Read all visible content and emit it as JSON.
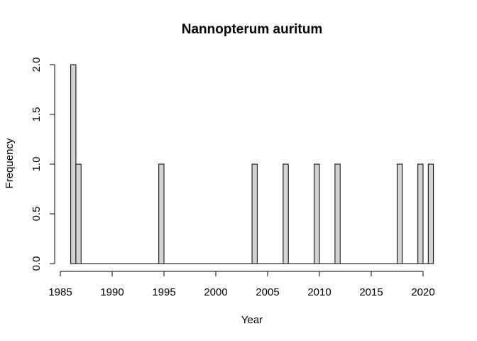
{
  "chart_data": {
    "type": "bar",
    "title": "Nannopterum auritum",
    "xlabel": "Year",
    "ylabel": "Frequency",
    "bin_width": 0.5,
    "xlim": [
      1985,
      2021
    ],
    "ylim": [
      0,
      2
    ],
    "x_ticks": [
      1985,
      1990,
      1995,
      2000,
      2005,
      2010,
      2015,
      2020
    ],
    "x_tick_labels": [
      "1985",
      "1990",
      "1995",
      "2000",
      "2005",
      "2010",
      "2015",
      "2020"
    ],
    "y_ticks": [
      0,
      0.5,
      1,
      1.5,
      2
    ],
    "y_tick_labels": [
      "0.0",
      "0.5",
      "1.0",
      "1.5",
      "2.0"
    ],
    "bins_start": 1986,
    "bins_end": 2021,
    "bars": [
      {
        "x0": 1986.0,
        "x1": 1986.5,
        "count": 2
      },
      {
        "x0": 1986.5,
        "x1": 1987.0,
        "count": 1
      },
      {
        "x0": 1994.5,
        "x1": 1995.0,
        "count": 1
      },
      {
        "x0": 2003.5,
        "x1": 2004.0,
        "count": 1
      },
      {
        "x0": 2006.5,
        "x1": 2007.0,
        "count": 1
      },
      {
        "x0": 2009.5,
        "x1": 2010.0,
        "count": 1
      },
      {
        "x0": 2011.5,
        "x1": 2012.0,
        "count": 1
      },
      {
        "x0": 2017.5,
        "x1": 2018.0,
        "count": 1
      },
      {
        "x0": 2019.5,
        "x1": 2020.0,
        "count": 1
      },
      {
        "x0": 2020.5,
        "x1": 2021.0,
        "count": 1
      }
    ],
    "bar_color": "#d3d3d3",
    "grid": false,
    "legend": "none"
  }
}
